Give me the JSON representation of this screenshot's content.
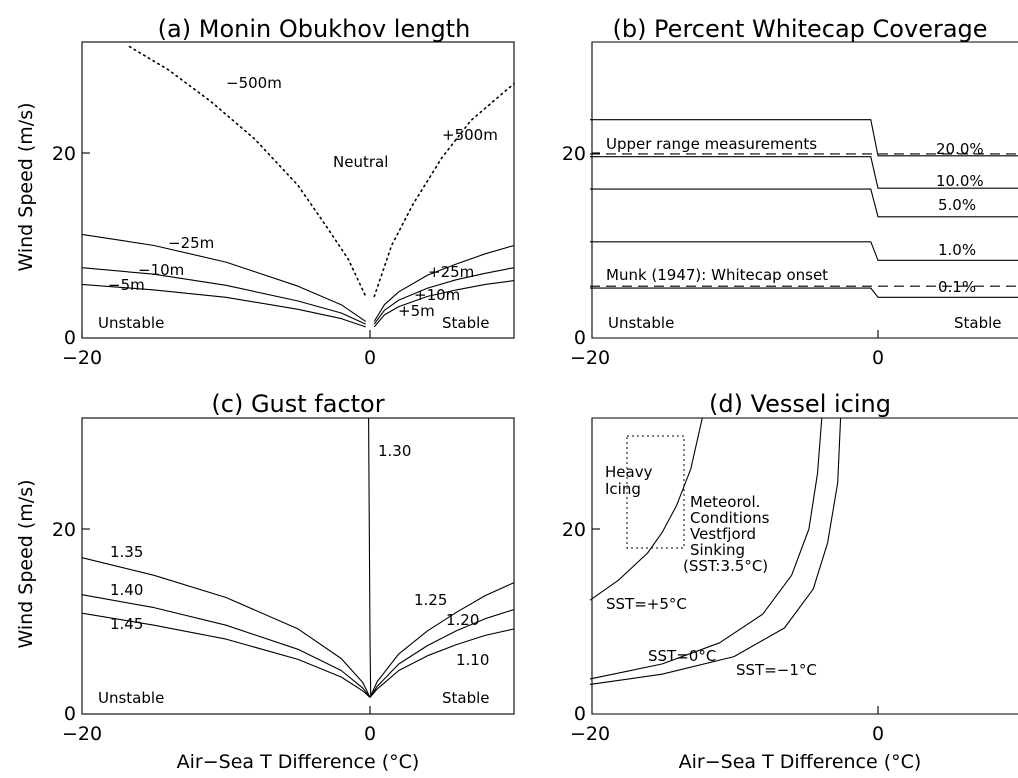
{
  "chart_data": [
    {
      "type": "line",
      "title": "(a) Monin Obukhov length",
      "xlabel": "",
      "ylabel": "Wind Speed (m/s)",
      "xlim": [
        -20,
        10
      ],
      "ylim": [
        0,
        32
      ],
      "xticks": [
        "-20",
        "0"
      ],
      "yticks": [
        "0",
        "20"
      ],
      "series": [
        {
          "name": "-500m",
          "style": "dotted",
          "x": [
            -16.7,
            -14,
            -11,
            -8,
            -5,
            -3,
            -1.5,
            -0.3
          ],
          "y": [
            31.5,
            29,
            25.5,
            21.5,
            16.5,
            12,
            8.5,
            4.5
          ]
        },
        {
          "name": "+500m",
          "style": "dotted",
          "x": [
            0.3,
            1.5,
            3,
            5,
            7,
            10
          ],
          "y": [
            4.5,
            10,
            14.5,
            19.5,
            23.5,
            27.5
          ]
        },
        {
          "name": "-25m",
          "x": [
            -20,
            -15,
            -10,
            -5,
            -2,
            -0.3
          ],
          "y": [
            11.2,
            10,
            8.2,
            5.6,
            3.6,
            1.8
          ]
        },
        {
          "name": "-10m",
          "x": [
            -20,
            -15,
            -10,
            -5,
            -2,
            -0.3
          ],
          "y": [
            7.6,
            6.9,
            5.7,
            4,
            2.7,
            1.5
          ]
        },
        {
          "name": "-5m",
          "x": [
            -20,
            -15,
            -10,
            -5,
            -2,
            -0.3
          ],
          "y": [
            5.8,
            5.2,
            4.4,
            3.1,
            2.1,
            1.2
          ]
        },
        {
          "name": "+25m",
          "x": [
            0.3,
            1,
            2,
            4,
            6,
            8,
            10
          ],
          "y": [
            1.8,
            3.6,
            5,
            6.8,
            8,
            9.1,
            10
          ]
        },
        {
          "name": "+10m",
          "x": [
            0.3,
            1,
            2,
            4,
            6,
            8,
            10
          ],
          "y": [
            1.5,
            3,
            4.1,
            5.4,
            6.3,
            7,
            7.6
          ]
        },
        {
          "name": "+5m",
          "x": [
            0.3,
            1,
            2,
            4,
            6,
            8,
            10
          ],
          "y": [
            1.2,
            2.5,
            3.4,
            4.5,
            5.2,
            5.8,
            6.2
          ]
        }
      ],
      "annotations": [
        "Neutral",
        "Unstable",
        "Stable"
      ]
    },
    {
      "type": "line",
      "title": "(b) Percent Whitecap Coverage",
      "xlabel": "",
      "ylabel": "",
      "xlim": [
        -20,
        10
      ],
      "ylim": [
        0,
        32
      ],
      "xticks": [
        "-20",
        "0"
      ],
      "yticks": [
        "0",
        "20"
      ],
      "series": [
        {
          "name": "20.0%",
          "x": [
            -20,
            -0.5,
            0,
            10
          ],
          "y": [
            23.6,
            23.6,
            19.7,
            19.7
          ]
        },
        {
          "name": "10.0%",
          "x": [
            -20,
            -0.5,
            0,
            10
          ],
          "y": [
            19.6,
            19.6,
            16.2,
            16.2
          ]
        },
        {
          "name": "5.0%",
          "x": [
            -20,
            -0.5,
            0,
            10
          ],
          "y": [
            16.1,
            16.1,
            13.1,
            13.1
          ]
        },
        {
          "name": "1.0%",
          "x": [
            -20,
            -0.5,
            0,
            10
          ],
          "y": [
            10.4,
            10.4,
            8.4,
            8.4
          ]
        },
        {
          "name": "0.1%",
          "x": [
            -20,
            -0.5,
            0,
            10
          ],
          "y": [
            5.4,
            5.4,
            4.4,
            4.4
          ]
        },
        {
          "name": "Upper range measurements",
          "style": "dashed",
          "x": [
            -20,
            10
          ],
          "y": [
            19.9,
            19.9
          ]
        },
        {
          "name": "Munk (1947): Whitecap onset",
          "style": "dashed",
          "x": [
            -20,
            10
          ],
          "y": [
            5.6,
            5.6
          ]
        }
      ],
      "annotations": [
        "Unstable",
        "Stable"
      ]
    },
    {
      "type": "line",
      "title": "(c) Gust factor",
      "xlabel": "Air-Sea T Difference (°C)",
      "ylabel": "Wind Speed (m/s)",
      "xlim": [
        -20,
        10
      ],
      "ylim": [
        0,
        32
      ],
      "xticks": [
        "-20",
        "0"
      ],
      "yticks": [
        "0",
        "20"
      ],
      "series": [
        {
          "name": "1.30",
          "x": [
            -0.1,
            -0.05,
            0,
            0.05
          ],
          "y": [
            32,
            20,
            8,
            2
          ]
        },
        {
          "name": "1.35",
          "x": [
            -20,
            -15,
            -10,
            -5,
            -2,
            -0.5,
            0
          ],
          "y": [
            16.9,
            15,
            12.6,
            9.2,
            6,
            3.4,
            1.8
          ]
        },
        {
          "name": "1.40",
          "x": [
            -20,
            -15,
            -10,
            -5,
            -2,
            -0.5,
            0
          ],
          "y": [
            12.9,
            11.5,
            9.6,
            7,
            4.7,
            2.8,
            1.8
          ]
        },
        {
          "name": "1.45",
          "x": [
            -20,
            -15,
            -10,
            -5,
            -2,
            -0.5,
            0
          ],
          "y": [
            10.9,
            9.6,
            8.1,
            5.9,
            4,
            2.5,
            1.8
          ]
        },
        {
          "name": "1.25",
          "x": [
            0,
            0.5,
            2,
            4,
            6,
            8,
            10
          ],
          "y": [
            1.8,
            3.5,
            6.5,
            9,
            11,
            12.8,
            14.2
          ]
        },
        {
          "name": "1.20",
          "x": [
            0,
            0.5,
            2,
            4,
            6,
            8,
            10
          ],
          "y": [
            1.8,
            3,
            5.4,
            7.4,
            9,
            10.3,
            11.3
          ]
        },
        {
          "name": "1.10",
          "x": [
            0,
            0.5,
            2,
            4,
            6,
            8,
            10
          ],
          "y": [
            1.8,
            2.7,
            4.7,
            6.3,
            7.5,
            8.5,
            9.2
          ]
        }
      ],
      "annotations": [
        "Unstable",
        "Stable"
      ]
    },
    {
      "type": "line",
      "title": "(d) Vessel icing",
      "xlabel": "Air-Sea T Difference (°C)",
      "ylabel": "",
      "xlim": [
        -20,
        10
      ],
      "ylim": [
        0,
        32
      ],
      "xticks": [
        "-20",
        "0"
      ],
      "yticks": [
        "0",
        "20"
      ],
      "series": [
        {
          "name": "SST=+5°C",
          "x": [
            -20,
            -18,
            -16,
            -15,
            -14,
            -13,
            -12.2
          ],
          "y": [
            12.3,
            14.5,
            17.4,
            19.6,
            22.5,
            26.5,
            32
          ]
        },
        {
          "name": "SST=0°C",
          "x": [
            -20,
            -15,
            -11,
            -8,
            -6,
            -4.8,
            -4.2,
            -3.9
          ],
          "y": [
            3.8,
            5.4,
            7.7,
            10.8,
            15,
            20,
            26,
            32
          ]
        },
        {
          "name": "SST=-1°C",
          "x": [
            -20,
            -15,
            -10,
            -6.5,
            -4.5,
            -3.5,
            -2.8,
            -2.6
          ],
          "y": [
            3.2,
            4.3,
            6.2,
            9.3,
            13.5,
            18.5,
            25,
            32
          ]
        }
      ],
      "annotations": [
        "Heavy Icing",
        "Meteorol. Conditions Vestfjord Sinking (SST:3.5°C)"
      ]
    }
  ],
  "panels": [
    {
      "title": "(a) Monin Obukhov length",
      "ylabel": "Wind Speed (m/s)",
      "xticks": [
        "−20",
        "0"
      ],
      "yticks": [
        "0",
        "20"
      ],
      "labels": {
        "m500": "−500m",
        "p500": "+500m",
        "neutral": "Neutral",
        "m25": "−25m",
        "m10": "−10m",
        "m5": "−5m",
        "p25": "+25m",
        "p10": "+10m",
        "p5": "+5m",
        "unstable": "Unstable",
        "stable": "Stable"
      }
    },
    {
      "title": "(b) Percent Whitecap Coverage",
      "xticks": [
        "−20",
        "0"
      ],
      "yticks": [
        "0",
        "20"
      ],
      "labels": {
        "upper": "Upper range measurements",
        "munk": "Munk (1947): Whitecap onset",
        "p20": "20.0%",
        "p10": "10.0%",
        "p5": "5.0%",
        "p1": "1.0%",
        "p01": "0.1%",
        "unstable": "Unstable",
        "stable": "Stable"
      }
    },
    {
      "title": "(c) Gust factor",
      "ylabel": "Wind Speed (m/s)",
      "xlabel": "Air−Sea T Difference (°C)",
      "xticks": [
        "−20",
        "0"
      ],
      "yticks": [
        "0",
        "20"
      ],
      "labels": {
        "g130": "1.30",
        "g135": "1.35",
        "g140": "1.40",
        "g145": "1.45",
        "g125": "1.25",
        "g120": "1.20",
        "g110": "1.10",
        "unstable": "Unstable",
        "stable": "Stable"
      }
    },
    {
      "title": "(d) Vessel icing",
      "xlabel": "Air−Sea T Difference (°C)",
      "xticks": [
        "−20",
        "0"
      ],
      "yticks": [
        "0",
        "20"
      ],
      "labels": {
        "heavy1": "Heavy",
        "heavy2": "Icing",
        "met1": "Meteorol.",
        "met2": "Conditions",
        "met3": "Vestfjord",
        "met4": "Sinking",
        "met5": "(SST:3.5°C)",
        "sst5": "SST=+5°C",
        "sst0": "SST=0°C",
        "sstm1": "SST=−1°C"
      }
    }
  ]
}
